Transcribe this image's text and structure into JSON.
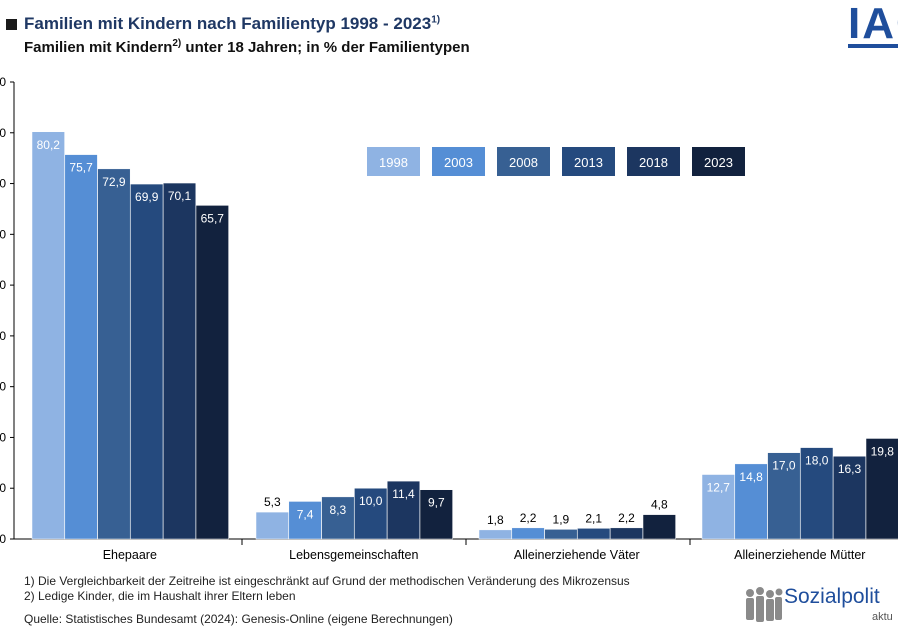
{
  "header": {
    "title": "Familien mit Kindern nach Familientyp 1998 - 2023",
    "title_sup": "1)",
    "subtitle_a": "Familien mit Kindern",
    "subtitle_sup": "2)",
    "subtitle_b": " unter 18 Jahren; in % der Familientypen"
  },
  "logo": {
    "text": "IAQ"
  },
  "footer": {
    "note1": "1) Die Vergleichbarkeit der Zeitreihe ist eingeschränkt auf Grund der methodischen Veränderung des Mikrozensus",
    "note2": "2) Ledige Kinder, die im Haushalt ihrer Eltern leben",
    "source": "Quelle: Statistisches Bundesamt (2024): Genesis-Online (eigene Berechnungen)"
  },
  "brand": {
    "name": "Sozialpolit",
    "sub": "aktu"
  },
  "chart_data": {
    "type": "bar",
    "categories": [
      "Ehepaare",
      "Lebensgemeinschaften",
      "Alleinerziehende Väter",
      "Alleinerziehende Mütter"
    ],
    "series": [
      {
        "name": "1998",
        "color": "#8fb3e3",
        "values": [
          80.2,
          5.3,
          1.8,
          12.7
        ],
        "labels": [
          "80,2",
          "5,3",
          "1,8",
          "12,7"
        ]
      },
      {
        "name": "2003",
        "color": "#558ed5",
        "values": [
          75.7,
          7.4,
          2.2,
          14.8
        ],
        "labels": [
          "75,7",
          "7,4",
          "2,2",
          "14,8"
        ]
      },
      {
        "name": "2008",
        "color": "#376093",
        "values": [
          72.9,
          8.3,
          1.9,
          17.0
        ],
        "labels": [
          "72,9",
          "8,3",
          "1,9",
          "17,0"
        ]
      },
      {
        "name": "2013",
        "color": "#254a7e",
        "values": [
          69.9,
          10.0,
          2.1,
          18.0
        ],
        "labels": [
          "69,9",
          "10,0",
          "2,1",
          "18,0"
        ]
      },
      {
        "name": "2018",
        "color": "#1c3660",
        "values": [
          70.1,
          11.4,
          2.2,
          16.3
        ],
        "labels": [
          "70,1",
          "11,4",
          "2,2",
          "16,3"
        ]
      },
      {
        "name": "2023",
        "color": "#12223e",
        "values": [
          65.7,
          9.7,
          4.8,
          19.8
        ],
        "labels": [
          "65,7",
          "9,7",
          "4,8",
          "19,8"
        ]
      }
    ],
    "ylim": [
      0,
      90
    ],
    "ytick_step": 10,
    "legend_position": "top-center",
    "grid": false
  }
}
